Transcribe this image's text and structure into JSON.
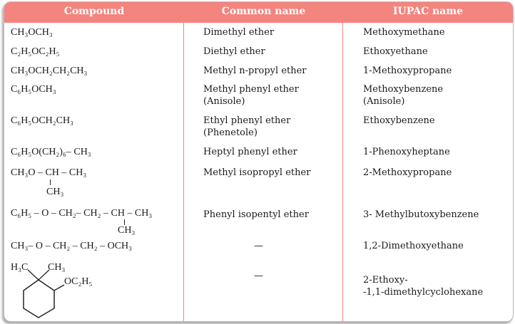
{
  "header": {
    "compound": "Compound",
    "common": "Common name",
    "iupac": "IUPAC name"
  },
  "rows": [
    {
      "compound": "CH₃OCH₃",
      "common": "Dimethyl ether",
      "iupac": "Methoxymethane"
    },
    {
      "compound": "C₂H₅OC₂H₅",
      "common": "Diethyl ether",
      "iupac": "Ethoxyethane"
    },
    {
      "compound": "CH₃OCH₂CH₂CH₃",
      "common": "Methyl n-propyl ether",
      "iupac": "1-Methoxypropane"
    },
    {
      "compound": "C₆H₅OCH₃",
      "common": "Methyl phenyl ether",
      "common2": "(Anisole)",
      "iupac": "Methoxybenzene",
      "iupac2": "(Anisole)"
    },
    {
      "compound": "C₆H₅OCH₂CH₃",
      "common": "Ethyl phenyl ether",
      "common2": "(Phenetole)",
      "iupac": "Ethoxybenzene"
    },
    {
      "compound": "C₆H₅O(CH₂)₆– CH₃",
      "common": "Heptyl phenyl ether",
      "iupac": "1-Phenoxyheptane"
    },
    {
      "compound": "CH₃O – CH – CH₃",
      "branch": "CH₃",
      "common": "Methyl isopropyl ether",
      "iupac": "2-Methoxypropane"
    },
    {
      "compound": "C₆H₅ – O – CH₂– CH₂ – CH – CH₃",
      "branch": "CH₃",
      "common": "Phenyl isopentyl ether",
      "iupac": "3-  Methylbutoxybenzene"
    },
    {
      "compound": "CH₃– O – CH₂ – CH₂ – OCH₃",
      "common": "—",
      "iupac": "1,2-Dimethoxyethane"
    },
    {
      "compound_labels": [
        "H₃C",
        "CH₃",
        "OC₂H₅"
      ],
      "common": "—",
      "iupac": "2-Ethoxy-",
      "iupac2": "-1,1-dimethylcyclohexane"
    }
  ],
  "colors": {
    "header": "#f4847e"
  }
}
